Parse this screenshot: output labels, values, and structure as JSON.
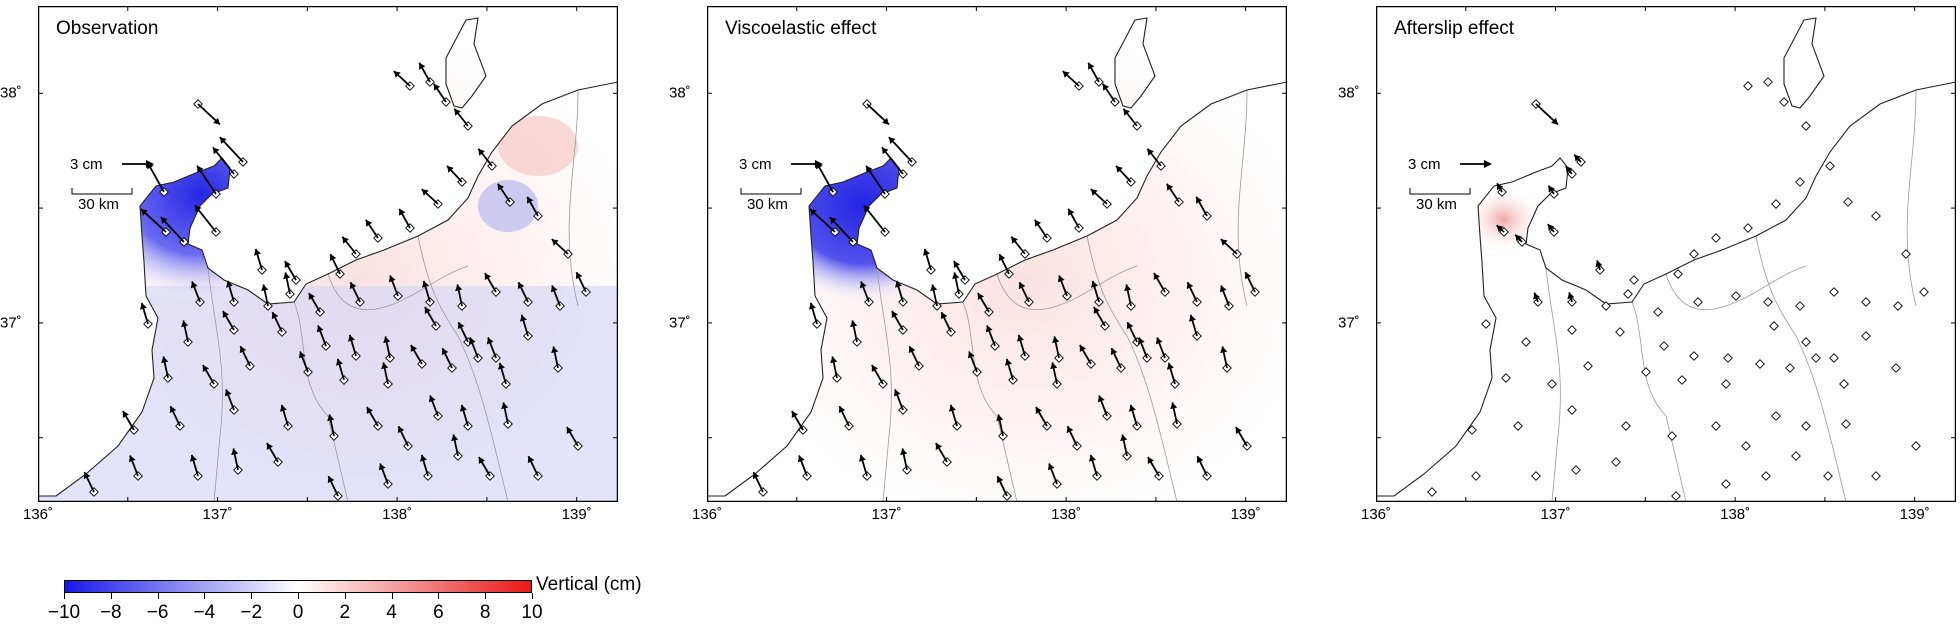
{
  "panels": [
    {
      "title": "Observation",
      "mode": "obs"
    },
    {
      "title": "Viscoelastic effect",
      "mode": "visco"
    },
    {
      "title": "Afterslip effect",
      "mode": "after"
    }
  ],
  "lon_ticks": [
    "136˚",
    "137˚",
    "138˚",
    "139˚"
  ],
  "lat_ticks": [
    "38˚",
    "37˚"
  ],
  "reference_vector": "3 cm",
  "scale_bar": "30 km",
  "colorbar": {
    "label": "Vertical (cm)",
    "ticks": [
      "−10",
      "−8",
      "−6",
      "−4",
      "−2",
      "0",
      "2",
      "4",
      "6",
      "8",
      "10"
    ],
    "min": -10,
    "max": 10,
    "colors": {
      "negative": "#1818e8",
      "zero": "#ffffff",
      "positive": "#e81818"
    }
  }
}
